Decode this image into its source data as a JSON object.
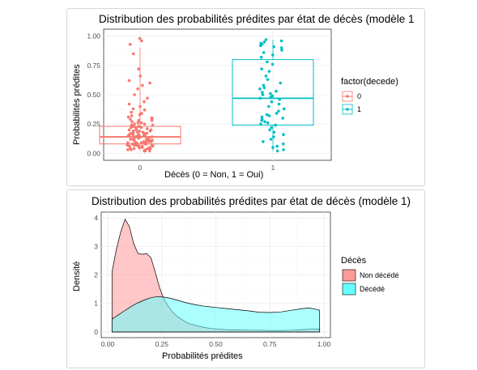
{
  "chart_data": [
    {
      "type": "boxplot-jitter",
      "title": "Distribution des probabilités prédites par état de décès (modèle 1",
      "xlabel": "Décès (0 = Non, 1 = Oui)",
      "ylabel": "Probabilités prédites",
      "categories": [
        "0",
        "1"
      ],
      "ylim": [
        0,
        1
      ],
      "yticks": [
        "0.00",
        "0.25",
        "0.50",
        "0.75",
        "1.00"
      ],
      "legend": {
        "title": "factor(decede)",
        "position": "right",
        "entries": [
          "0",
          "1"
        ]
      },
      "colors": {
        "0": "#f8766d",
        "1": "#00bfc4"
      },
      "boxes": [
        {
          "category": "0",
          "q1": 0.08,
          "median": 0.14,
          "q3": 0.23,
          "whisker_low": 0.02,
          "whisker_high": 0.9
        },
        {
          "category": "1",
          "q1": 0.24,
          "median": 0.47,
          "q3": 0.8,
          "whisker_low": 0.02,
          "whisker_high": 0.97
        }
      ],
      "points": {
        "0": [
          0.98,
          0.96,
          0.93,
          0.85,
          0.72,
          0.66,
          0.62,
          0.6,
          0.58,
          0.55,
          0.5,
          0.47,
          0.44,
          0.42,
          0.4,
          0.38,
          0.37,
          0.35,
          0.34,
          0.33,
          0.32,
          0.31,
          0.3,
          0.3,
          0.29,
          0.28,
          0.28,
          0.27,
          0.26,
          0.26,
          0.25,
          0.25,
          0.24,
          0.24,
          0.23,
          0.23,
          0.22,
          0.22,
          0.22,
          0.21,
          0.21,
          0.2,
          0.2,
          0.2,
          0.19,
          0.19,
          0.19,
          0.18,
          0.18,
          0.18,
          0.17,
          0.17,
          0.17,
          0.16,
          0.16,
          0.16,
          0.15,
          0.15,
          0.15,
          0.15,
          0.14,
          0.14,
          0.14,
          0.14,
          0.13,
          0.13,
          0.13,
          0.13,
          0.12,
          0.12,
          0.12,
          0.12,
          0.11,
          0.11,
          0.11,
          0.11,
          0.1,
          0.1,
          0.1,
          0.1,
          0.09,
          0.09,
          0.09,
          0.09,
          0.08,
          0.08,
          0.08,
          0.08,
          0.07,
          0.07,
          0.07,
          0.07,
          0.06,
          0.06,
          0.06,
          0.06,
          0.05,
          0.05,
          0.05,
          0.05,
          0.04,
          0.04,
          0.04,
          0.04,
          0.03,
          0.03,
          0.03,
          0.02,
          0.02,
          0.02
        ],
        "1": [
          0.97,
          0.96,
          0.95,
          0.94,
          0.93,
          0.92,
          0.91,
          0.9,
          0.88,
          0.86,
          0.84,
          0.82,
          0.78,
          0.76,
          0.72,
          0.7,
          0.66,
          0.63,
          0.6,
          0.58,
          0.56,
          0.55,
          0.53,
          0.52,
          0.51,
          0.5,
          0.49,
          0.48,
          0.47,
          0.46,
          0.44,
          0.42,
          0.4,
          0.38,
          0.36,
          0.34,
          0.33,
          0.32,
          0.31,
          0.3,
          0.29,
          0.28,
          0.27,
          0.26,
          0.25,
          0.24,
          0.22,
          0.2,
          0.18,
          0.16,
          0.14,
          0.12,
          0.1,
          0.08,
          0.06,
          0.05,
          0.03,
          0.02
        ]
      }
    },
    {
      "type": "area",
      "title": "Distribution des probabilités prédites par état de décès (modèle 1)",
      "xlabel": "Probabilités prédites",
      "ylabel": "Densité",
      "xlim": [
        0,
        1
      ],
      "ylim": [
        0,
        4
      ],
      "xticks": [
        "0.00",
        "0.25",
        "0.50",
        "0.75",
        "1.00"
      ],
      "yticks": [
        "0",
        "1",
        "2",
        "3",
        "4"
      ],
      "legend": {
        "title": "Décès",
        "position": "right"
      },
      "series": [
        {
          "name": "Non décédé",
          "color": "#ff9999",
          "x": [
            0.02,
            0.04,
            0.06,
            0.08,
            0.1,
            0.12,
            0.14,
            0.16,
            0.18,
            0.2,
            0.22,
            0.24,
            0.26,
            0.28,
            0.3,
            0.32,
            0.34,
            0.36,
            0.38,
            0.4,
            0.42,
            0.44,
            0.46,
            0.48,
            0.5,
            0.55,
            0.6,
            0.65,
            0.7,
            0.75,
            0.8,
            0.85,
            0.9,
            0.95,
            0.98
          ],
          "y": [
            2.1,
            2.9,
            3.5,
            3.95,
            3.7,
            3.1,
            2.75,
            2.72,
            2.75,
            2.6,
            2.1,
            1.55,
            1.15,
            0.9,
            0.7,
            0.55,
            0.45,
            0.35,
            0.28,
            0.24,
            0.2,
            0.17,
            0.14,
            0.12,
            0.1,
            0.08,
            0.07,
            0.06,
            0.06,
            0.05,
            0.05,
            0.06,
            0.08,
            0.1,
            0.1
          ]
        },
        {
          "name": "Décédé",
          "color": "#66ffff",
          "x": [
            0.02,
            0.05,
            0.08,
            0.11,
            0.14,
            0.17,
            0.2,
            0.23,
            0.26,
            0.29,
            0.32,
            0.35,
            0.4,
            0.45,
            0.5,
            0.55,
            0.6,
            0.65,
            0.7,
            0.75,
            0.8,
            0.85,
            0.9,
            0.93,
            0.96,
            0.98
          ],
          "y": [
            0.45,
            0.6,
            0.75,
            0.9,
            1.02,
            1.12,
            1.2,
            1.24,
            1.22,
            1.18,
            1.12,
            1.05,
            0.96,
            0.9,
            0.86,
            0.82,
            0.78,
            0.74,
            0.69,
            0.68,
            0.7,
            0.76,
            0.82,
            0.84,
            0.8,
            0.76
          ]
        }
      ]
    }
  ]
}
